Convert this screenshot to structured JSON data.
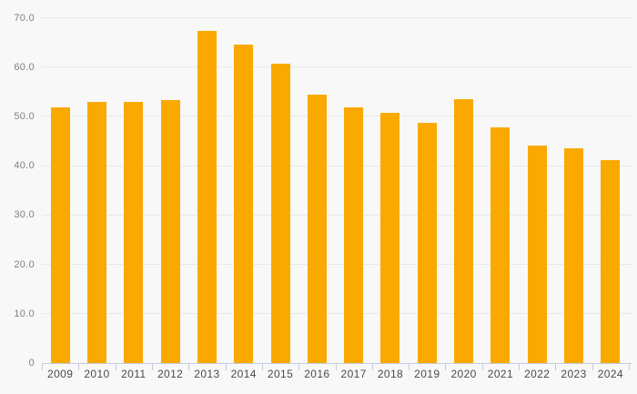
{
  "chart_data": {
    "type": "bar",
    "title": "",
    "xlabel": "",
    "ylabel": "",
    "categories": [
      "2009",
      "2010",
      "2011",
      "2012",
      "2013",
      "2014",
      "2015",
      "2016",
      "2017",
      "2018",
      "2019",
      "2020",
      "2021",
      "2022",
      "2023",
      "2024"
    ],
    "values": [
      51.8,
      52.9,
      52.9,
      53.3,
      67.3,
      64.5,
      60.6,
      54.5,
      51.8,
      50.7,
      48.7,
      53.4,
      47.7,
      44.0,
      43.6,
      41.2
    ],
    "ylim": [
      0,
      70
    ],
    "ytick_step": 10,
    "ytick_labels": [
      "0",
      "10.0",
      "20.0",
      "30.0",
      "40.0",
      "50.0",
      "60.0",
      "70.0"
    ],
    "grid": true,
    "legend": false,
    "colors": {
      "bar": "#F9A900",
      "background": "#F8F8F8",
      "gridline": "#E9E9E9",
      "axis_line": "#C3CBDD",
      "ytick_text": "#7F7F7F",
      "xtick_text": "#4A4A4A"
    }
  }
}
